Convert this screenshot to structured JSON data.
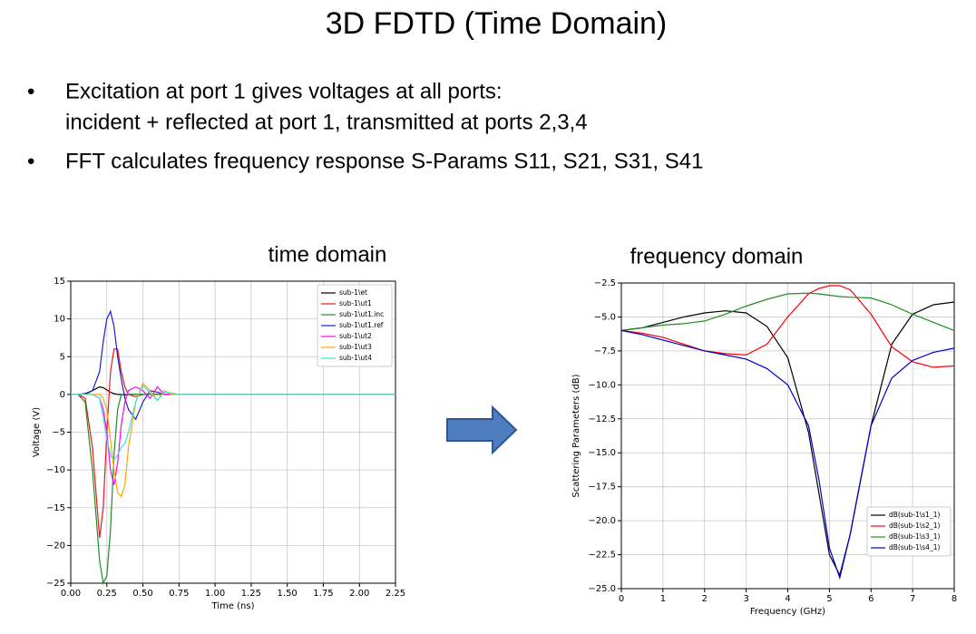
{
  "header": {
    "title": "3D FDTD (Time Domain)"
  },
  "bullets": [
    {
      "lines": [
        "Excitation at port 1 gives voltages at all ports:",
        "incident + reflected at port 1, transmitted at ports 2,3,4"
      ]
    },
    {
      "lines": [
        "FFT calculates frequency response S-Params S11, S21, S31, S41"
      ]
    }
  ],
  "chart_data": [
    {
      "type": "line",
      "title": "time domain",
      "xlabel": "Time (ns)",
      "ylabel": "Voltage (V)",
      "grid": true,
      "legend": "upper-right",
      "x": [
        0,
        0.05,
        0.1,
        0.15,
        0.2,
        0.225,
        0.25,
        0.275,
        0.3,
        0.325,
        0.35,
        0.375,
        0.4,
        0.45,
        0.5,
        0.55,
        0.6,
        0.65,
        0.7,
        0.75,
        0.8,
        0.9,
        1.0,
        1.25,
        1.5,
        2.0,
        2.25
      ],
      "xlim": [
        0,
        2.25
      ],
      "xticks": [
        {
          "value": 0,
          "label": "0.00"
        },
        {
          "value": 0.25,
          "label": "0.25"
        },
        {
          "value": 0.5,
          "label": "0.50"
        },
        {
          "value": 0.75,
          "label": "0.75"
        },
        {
          "value": 1,
          "label": "1.00"
        },
        {
          "value": 1.25,
          "label": "1.25"
        },
        {
          "value": 1.5,
          "label": "1.50"
        },
        {
          "value": 1.75,
          "label": "1.75"
        },
        {
          "value": 2,
          "label": "2.00"
        },
        {
          "value": 2.25,
          "label": "2.25"
        }
      ],
      "ylim": [
        -25,
        15
      ],
      "yticks": [
        {
          "value": -25,
          "label": "−25"
        },
        {
          "value": -20,
          "label": "−20"
        },
        {
          "value": -15,
          "label": "−15"
        },
        {
          "value": -10,
          "label": "−10"
        },
        {
          "value": -5,
          "label": "−5"
        },
        0,
        5,
        10,
        15
      ],
      "series": [
        {
          "name": "sub-1\\et",
          "color": "#000000",
          "values": [
            0,
            0,
            0.1,
            0.5,
            1,
            0.9,
            0.6,
            0.3,
            0.1,
            0,
            0,
            -0.1,
            0,
            0,
            0,
            0,
            0,
            0,
            0,
            0,
            0,
            0,
            0,
            0,
            0,
            0,
            0
          ]
        },
        {
          "name": "sub-1\\ut1",
          "color": "#e41a1c",
          "values": [
            0,
            0,
            -0.5,
            -7,
            -19,
            -15,
            -5,
            3,
            6,
            6,
            3,
            1,
            0,
            -0.3,
            0,
            0,
            0,
            0,
            0,
            0,
            0,
            0,
            0,
            0,
            0,
            0,
            0
          ]
        },
        {
          "name": "sub-1\\ut1.inc",
          "color": "#228b22",
          "values": [
            0,
            0,
            -1,
            -10,
            -22,
            -25,
            -24,
            -18,
            -8,
            -2,
            0,
            0,
            0,
            0,
            0,
            0,
            0,
            0,
            0,
            0,
            0,
            0,
            0,
            0,
            0,
            0,
            0
          ]
        },
        {
          "name": "sub-1\\ut1.ref",
          "color": "#1f1fcf",
          "values": [
            0,
            0,
            0,
            0.5,
            3,
            7,
            10,
            11,
            9,
            5,
            2,
            -0.5,
            -2,
            -3.3,
            -1,
            0.5,
            0.3,
            0,
            0,
            0,
            0,
            0,
            0,
            0,
            0,
            0,
            0
          ]
        },
        {
          "name": "sub-1\\ut2",
          "color": "#ff00ff",
          "values": [
            0,
            0,
            0,
            0,
            -0.5,
            -2,
            -5,
            -10,
            -12,
            -9,
            -4,
            -1,
            0.5,
            1,
            0.5,
            -0.5,
            1,
            0,
            0,
            0,
            0,
            0,
            0,
            0,
            0,
            0,
            0
          ]
        },
        {
          "name": "sub-1\\ut3",
          "color": "#ffa500",
          "values": [
            0,
            0,
            0,
            0,
            0,
            -0.5,
            -2,
            -6,
            -10,
            -13,
            -13.5,
            -12,
            -7,
            -1,
            1.5,
            0.5,
            -0.8,
            0.5,
            0,
            0,
            0,
            0,
            0,
            0,
            0,
            0,
            0
          ]
        },
        {
          "name": "sub-1\\ut4",
          "color": "#40e0d0",
          "values": [
            0,
            0,
            0,
            0,
            -0.5,
            -3,
            -6,
            -8,
            -8.7,
            -8,
            -7,
            -6.5,
            -5,
            -1,
            1.2,
            0.2,
            -0.8,
            0.3,
            0.2,
            0,
            0,
            0,
            0,
            0,
            0,
            0,
            0
          ]
        }
      ]
    },
    {
      "type": "line",
      "title": "frequency domain",
      "xlabel": "Frequency (GHz)",
      "ylabel": "Scattering Parameters (dB)",
      "grid": true,
      "legend": "lower-right",
      "x": [
        0,
        0.5,
        1,
        1.5,
        2,
        2.5,
        3,
        3.5,
        4,
        4.5,
        4.75,
        5,
        5.25,
        5.5,
        6,
        6.5,
        7,
        7.5,
        8
      ],
      "xlim": [
        0,
        8
      ],
      "xticks": [
        0,
        1,
        2,
        3,
        4,
        5,
        6,
        7,
        8
      ],
      "ylim": [
        -25,
        -2.5
      ],
      "yticks": [
        {
          "value": -25,
          "label": "−25.0"
        },
        {
          "value": -22.5,
          "label": "−22.5"
        },
        {
          "value": -20,
          "label": "−20.0"
        },
        {
          "value": -17.5,
          "label": "−17.5"
        },
        {
          "value": -15,
          "label": "−15.0"
        },
        {
          "value": -12.5,
          "label": "−12.5"
        },
        {
          "value": -10,
          "label": "−10.0"
        },
        {
          "value": -7.5,
          "label": "−7.5"
        },
        {
          "value": -5,
          "label": "−5.0"
        },
        {
          "value": -2.5,
          "label": "−2.5"
        }
      ],
      "series": [
        {
          "name": "dB(sub-1\\s1_1)",
          "color": "#000000",
          "values": [
            -6,
            -5.8,
            -5.4,
            -5,
            -4.7,
            -4.55,
            -4.7,
            -5.7,
            -8,
            -13.5,
            -18,
            -22.5,
            -24,
            -21,
            -13,
            -7,
            -4.8,
            -4.1,
            -3.9
          ]
        },
        {
          "name": "dB(sub-1\\s2_1)",
          "color": "#ff0000",
          "values": [
            -6,
            -6.2,
            -6.5,
            -7,
            -7.5,
            -7.7,
            -7.8,
            -7,
            -5,
            -3.3,
            -2.9,
            -2.7,
            -2.7,
            -3,
            -4.8,
            -7.2,
            -8.3,
            -8.7,
            -8.6
          ]
        },
        {
          "name": "dB(sub-1\\s3_1)",
          "color": "#228b22",
          "values": [
            -6,
            -5.8,
            -5.6,
            -5.5,
            -5.3,
            -4.8,
            -4.2,
            -3.7,
            -3.3,
            -3.25,
            -3.3,
            -3.4,
            -3.5,
            -3.55,
            -3.6,
            -4.1,
            -4.8,
            -5.4,
            -6
          ]
        },
        {
          "name": "dB(sub-1\\s4_1)",
          "color": "#0000cd",
          "values": [
            -6,
            -6.3,
            -6.7,
            -7.1,
            -7.5,
            -7.8,
            -8.1,
            -8.8,
            -10,
            -13,
            -17,
            -22,
            -24.2,
            -21,
            -13,
            -9.5,
            -8.2,
            -7.6,
            -7.3
          ]
        }
      ]
    }
  ]
}
